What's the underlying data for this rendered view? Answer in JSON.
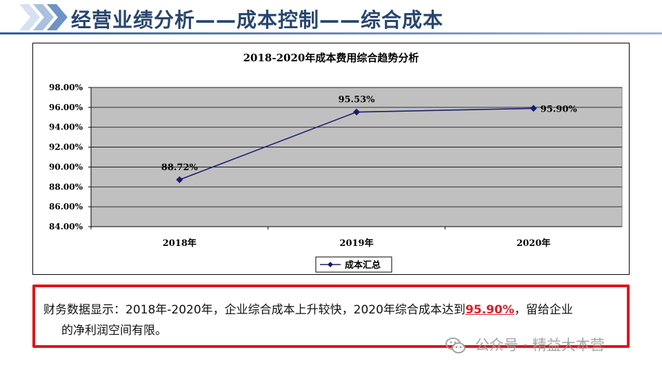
{
  "header": {
    "title": "经营业绩分析——成本控制——综合成本"
  },
  "chart_data": {
    "type": "line",
    "title": "2018-2020年成本费用综合趋势分析",
    "categories": [
      "2018年",
      "2019年",
      "2020年"
    ],
    "series": [
      {
        "name": "成本汇总",
        "values": [
          88.72,
          95.53,
          95.9
        ],
        "labels": [
          "88.72%",
          "95.53%",
          "95.90%"
        ]
      }
    ],
    "ylim": [
      84,
      98
    ],
    "yticks": [
      98,
      96,
      94,
      92,
      90,
      88,
      86,
      84
    ],
    "ytick_labels": [
      "98.00%",
      "96.00%",
      "94.00%",
      "92.00%",
      "90.00%",
      "88.00%",
      "86.00%",
      "84.00%"
    ],
    "grid": true,
    "legend": "bottom",
    "colors": {
      "line": "#1a1a6e",
      "plot_bg": "#c0c0c0"
    }
  },
  "note": {
    "prefix": "财务数据显示：2018年-2020年，企业综合成本上升较快，2020年综合成本达到",
    "highlight": "95.90%",
    "suffix": "，留给企业",
    "line2": "的净利润空间有限。"
  },
  "watermark": {
    "text": "公众号 · 精益大本营",
    "icon": "wechat-icon"
  }
}
